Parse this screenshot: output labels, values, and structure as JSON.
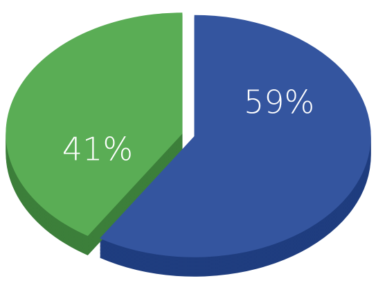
{
  "chart_data": {
    "type": "pie",
    "values": [
      59,
      41
    ],
    "value_labels": [
      "59%",
      "41%"
    ],
    "colors": [
      "#34559f",
      "#5aad55"
    ],
    "side_colors": [
      "#1f3d7f",
      "#3c7f3a"
    ]
  }
}
